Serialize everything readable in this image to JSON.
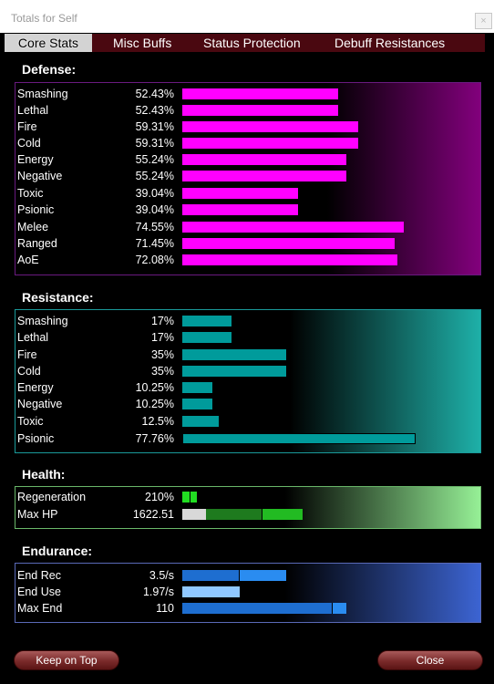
{
  "window": {
    "title": "Totals for Self",
    "close_glyph": "×"
  },
  "tabs": [
    {
      "label": "Core Stats",
      "active": true
    },
    {
      "label": "Misc Buffs",
      "active": false
    },
    {
      "label": "Status Protection",
      "active": false
    },
    {
      "label": "Debuff Resistances",
      "active": false
    }
  ],
  "colors": {
    "defense_bar": "#ff00ff",
    "resistance_bar": "#009b9b",
    "health_regen": "#22dd22",
    "health_maxhp_base": "#d8d8d8",
    "health_maxhp_fill": "#1e7a1e",
    "endurance_bar": "#1e6ed0",
    "endurance_use": "#90c8ff"
  },
  "sections": {
    "defense": {
      "title": "Defense:",
      "rows": [
        {
          "label": "Smashing",
          "value": "52.43%"
        },
        {
          "label": "Lethal",
          "value": "52.43%"
        },
        {
          "label": "Fire",
          "value": "59.31%"
        },
        {
          "label": "Cold",
          "value": "59.31%"
        },
        {
          "label": "Energy",
          "value": "55.24%"
        },
        {
          "label": "Negative",
          "value": "55.24%"
        },
        {
          "label": "Toxic",
          "value": "39.04%"
        },
        {
          "label": "Psionic",
          "value": "39.04%"
        },
        {
          "label": "Melee",
          "value": "74.55%"
        },
        {
          "label": "Ranged",
          "value": "71.45%"
        },
        {
          "label": "AoE",
          "value": "72.08%"
        }
      ]
    },
    "resistance": {
      "title": "Resistance:",
      "rows": [
        {
          "label": "Smashing",
          "value": "17%"
        },
        {
          "label": "Lethal",
          "value": "17%"
        },
        {
          "label": "Fire",
          "value": "35%"
        },
        {
          "label": "Cold",
          "value": "35%"
        },
        {
          "label": "Energy",
          "value": "10.25%"
        },
        {
          "label": "Negative",
          "value": "10.25%"
        },
        {
          "label": "Toxic",
          "value": "12.5%"
        },
        {
          "label": "Psionic",
          "value": "77.76%"
        }
      ]
    },
    "health": {
      "title": "Health:",
      "rows": [
        {
          "label": "Regeneration",
          "value": "210%"
        },
        {
          "label": "Max HP",
          "value": "1622.51"
        }
      ]
    },
    "endurance": {
      "title": "Endurance:",
      "rows": [
        {
          "label": "End Rec",
          "value": "3.5/s"
        },
        {
          "label": "End Use",
          "value": "1.97/s"
        },
        {
          "label": "Max End",
          "value": "110"
        }
      ]
    }
  },
  "buttons": {
    "keep_on_top": "Keep on Top",
    "close": "Close"
  }
}
